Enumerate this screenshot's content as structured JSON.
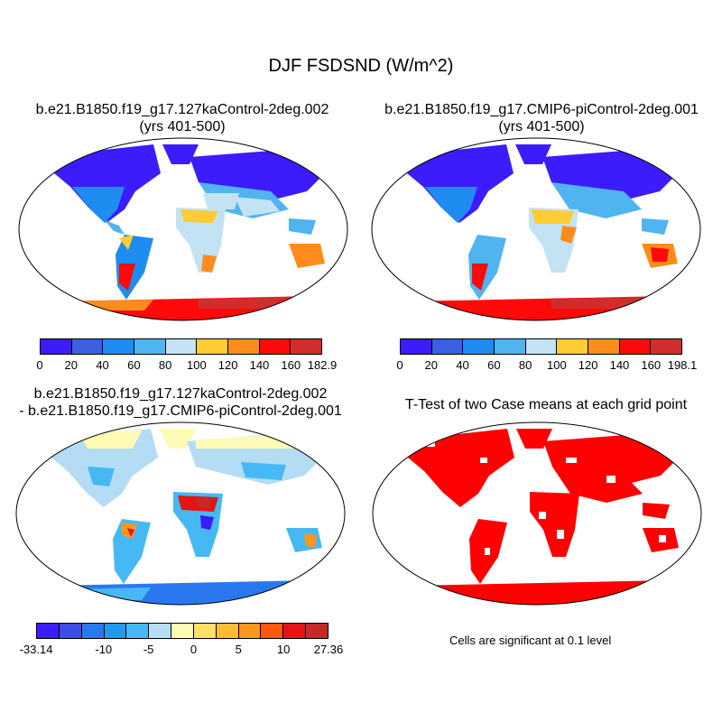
{
  "figure": {
    "title": "DJF FSDSND (W/m^2)"
  },
  "panels": [
    {
      "title_line1": "b.e21.B1850.f19_g17.127kaControl-2deg.002",
      "title_line2": "(yrs 401-500)",
      "colorbar": {
        "colors": [
          "#3c1cfa",
          "#3d5fe1",
          "#1e8cf0",
          "#50b4f0",
          "#c3e3f5",
          "#ffcc33",
          "#ff8c1a",
          "#ff0a0a",
          "#d22d2d"
        ],
        "tick_labels": [
          "0",
          "20",
          "40",
          "60",
          "80",
          "100",
          "120",
          "140",
          "160",
          "182.9"
        ]
      }
    },
    {
      "title_line1": "b.e21.B1850.f19_g17.CMIP6-piControl-2deg.001",
      "title_line2": "(yrs 401-500)",
      "colorbar": {
        "colors": [
          "#3c1cfa",
          "#3d5fe1",
          "#1e8cf0",
          "#50b4f0",
          "#c3e3f5",
          "#ffcc33",
          "#ff8c1a",
          "#ff0a0a",
          "#d22d2d"
        ],
        "tick_labels": [
          "0",
          "20",
          "40",
          "60",
          "80",
          "100",
          "120",
          "140",
          "160",
          "198.1"
        ]
      }
    },
    {
      "title_line1": "b.e21.B1850.f19_g17.127kaControl-2deg.002",
      "title_line2": "- b.e21.B1850.f19_g17.CMIP6-piControl-2deg.001",
      "colorbar": {
        "colors": [
          "#3c1cfa",
          "#3d4ee6",
          "#2a78f0",
          "#1e9bf0",
          "#46b9f5",
          "#b4dcf5",
          "#fffab4",
          "#ffe164",
          "#ffbe32",
          "#ff961e",
          "#ff5a0a",
          "#e61414",
          "#c82828"
        ],
        "tick_labels": [
          "-33.14",
          "-10",
          "-5",
          "0",
          "5",
          "10",
          "27.36"
        ]
      }
    },
    {
      "title_line1": "T-Test of two Case means at each grid point",
      "significance_color": "#ff0000",
      "note": "Cells are significant at 0.1 level"
    }
  ]
}
